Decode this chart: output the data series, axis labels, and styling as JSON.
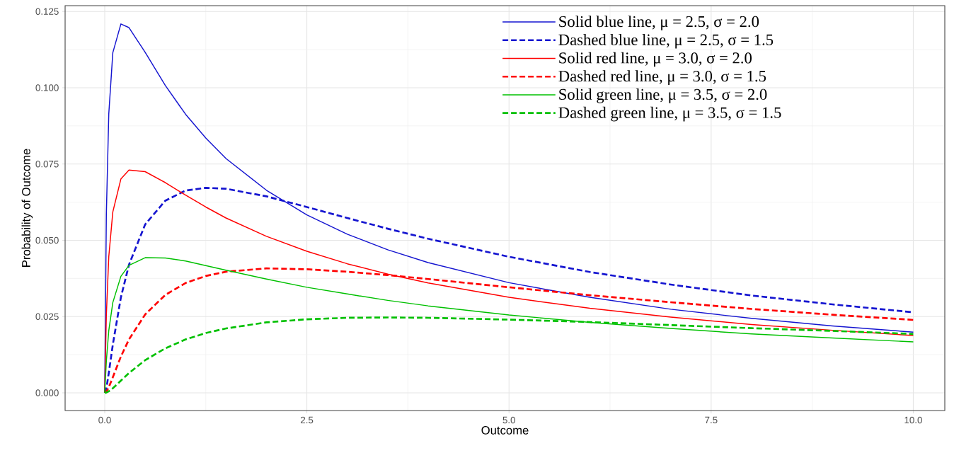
{
  "chart_data": {
    "type": "line",
    "xlabel": "Outcome",
    "ylabel": "Probability of Outcome",
    "x": [
      0,
      0.02,
      0.05,
      0.1,
      0.2,
      0.3,
      0.5,
      0.75,
      1,
      1.25,
      1.5,
      2,
      2.5,
      3,
      3.5,
      4,
      5,
      6,
      7,
      8,
      9,
      10
    ],
    "xlim": [
      -0.49,
      10.39
    ],
    "ylim": [
      -0.0058,
      0.1269
    ],
    "xticks": [
      {
        "value": 0,
        "label": "0.0"
      },
      2.5,
      {
        "value": 5,
        "label": "5.0"
      },
      7.5,
      {
        "value": 10,
        "label": "10.0"
      }
    ],
    "yticks": [
      {
        "value": 0,
        "label": "0.000"
      },
      0.025,
      {
        "value": 0.05,
        "label": "0.050"
      },
      0.075,
      {
        "value": 0.1,
        "label": "0.100"
      },
      0.125
    ],
    "grid": true,
    "legend": "top right",
    "series": [
      {
        "name": "Solid blue line, μ = 2.5, σ = 2.0",
        "color": "#1515d0",
        "line_style": "solid",
        "values": [
          0,
          0.0585,
          0.0914,
          0.1115,
          0.1209,
          0.1197,
          0.1116,
          0.1007,
          0.0913,
          0.0835,
          0.0768,
          0.0664,
          0.0583,
          0.052,
          0.0469,
          0.0427,
          0.0361,
          0.0313,
          0.0274,
          0.0244,
          0.0219,
          0.0199
        ]
      },
      {
        "name": "Dashed blue line, μ = 2.5, σ = 1.5",
        "color": "#1515d0",
        "line_style": "dashed",
        "values": [
          0,
          0.0014,
          0.0065,
          0.0158,
          0.0313,
          0.042,
          0.0552,
          0.063,
          0.0663,
          0.0672,
          0.0669,
          0.0644,
          0.0609,
          0.0573,
          0.0538,
          0.0505,
          0.0446,
          0.0396,
          0.0355,
          0.0319,
          0.029,
          0.0264
        ]
      },
      {
        "name": "Solid red line, μ = 3.0, σ = 2.0",
        "color": "#ff0000",
        "line_style": "solid",
        "values": [
          0,
          0.0254,
          0.0446,
          0.0593,
          0.0701,
          0.073,
          0.0725,
          0.0689,
          0.0648,
          0.0609,
          0.0573,
          0.0513,
          0.0464,
          0.0423,
          0.0389,
          0.036,
          0.0313,
          0.0277,
          0.0248,
          0.0224,
          0.0205,
          0.0188
        ]
      },
      {
        "name": "Dashed red line, μ = 3.0, σ = 1.5",
        "color": "#ff0000",
        "line_style": "dashed",
        "values": [
          0,
          0.0003,
          0.0018,
          0.0051,
          0.0119,
          0.0175,
          0.0257,
          0.0321,
          0.036,
          0.0383,
          0.0397,
          0.0408,
          0.0405,
          0.0397,
          0.0386,
          0.0373,
          0.0346,
          0.032,
          0.0297,
          0.0275,
          0.0256,
          0.0239
        ]
      },
      {
        "name": "Solid green line, μ = 3.5, σ = 2.0",
        "color": "#00c000",
        "line_style": "solid",
        "values": [
          0,
          0.0104,
          0.0204,
          0.0296,
          0.0382,
          0.0418,
          0.0443,
          0.0442,
          0.0432,
          0.0417,
          0.0402,
          0.0373,
          0.0346,
          0.0324,
          0.0303,
          0.0285,
          0.0255,
          0.0231,
          0.0211,
          0.0193,
          0.018,
          0.0167
        ]
      },
      {
        "name": "Dashed green line, μ = 3.5, σ = 1.5",
        "color": "#00c000",
        "line_style": "dashed",
        "values": [
          0,
          0.0001,
          0.0005,
          0.0015,
          0.004,
          0.0065,
          0.0107,
          0.0146,
          0.0175,
          0.0196,
          0.0211,
          0.0231,
          0.0241,
          0.0246,
          0.0247,
          0.0246,
          0.024,
          0.0232,
          0.0222,
          0.0212,
          0.0203,
          0.0193
        ]
      }
    ]
  }
}
